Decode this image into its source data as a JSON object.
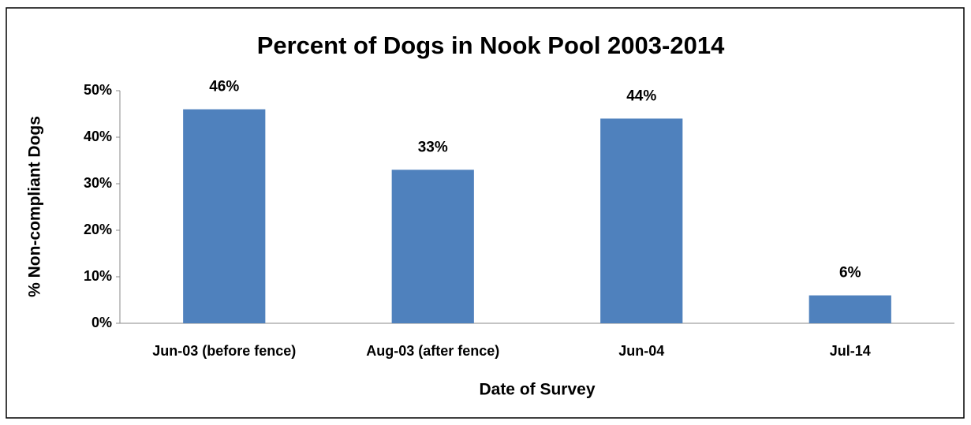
{
  "chart_data": {
    "type": "bar",
    "title": "Percent of Dogs in Nook Pool 2003-2014",
    "x_label": "Date of Survey",
    "y_label": "% Non-compliant Dogs",
    "categories": [
      "Jun-03 (before fence)",
      "Aug-03 (after fence)",
      "Jun-04",
      "Jul-14"
    ],
    "values": [
      46,
      33,
      44,
      6
    ],
    "value_labels": [
      "46%",
      "33%",
      "44%",
      "6%"
    ],
    "color": "#4f81bd",
    "ylim": [
      0,
      50
    ],
    "yticks": [
      {
        "value": 0,
        "label": "0%"
      },
      {
        "value": 10,
        "label": "10%"
      },
      {
        "value": 20,
        "label": "20%"
      },
      {
        "value": 30,
        "label": "30%"
      },
      {
        "value": 40,
        "label": "40%"
      },
      {
        "value": 50,
        "label": "50%"
      }
    ],
    "grid": false
  }
}
